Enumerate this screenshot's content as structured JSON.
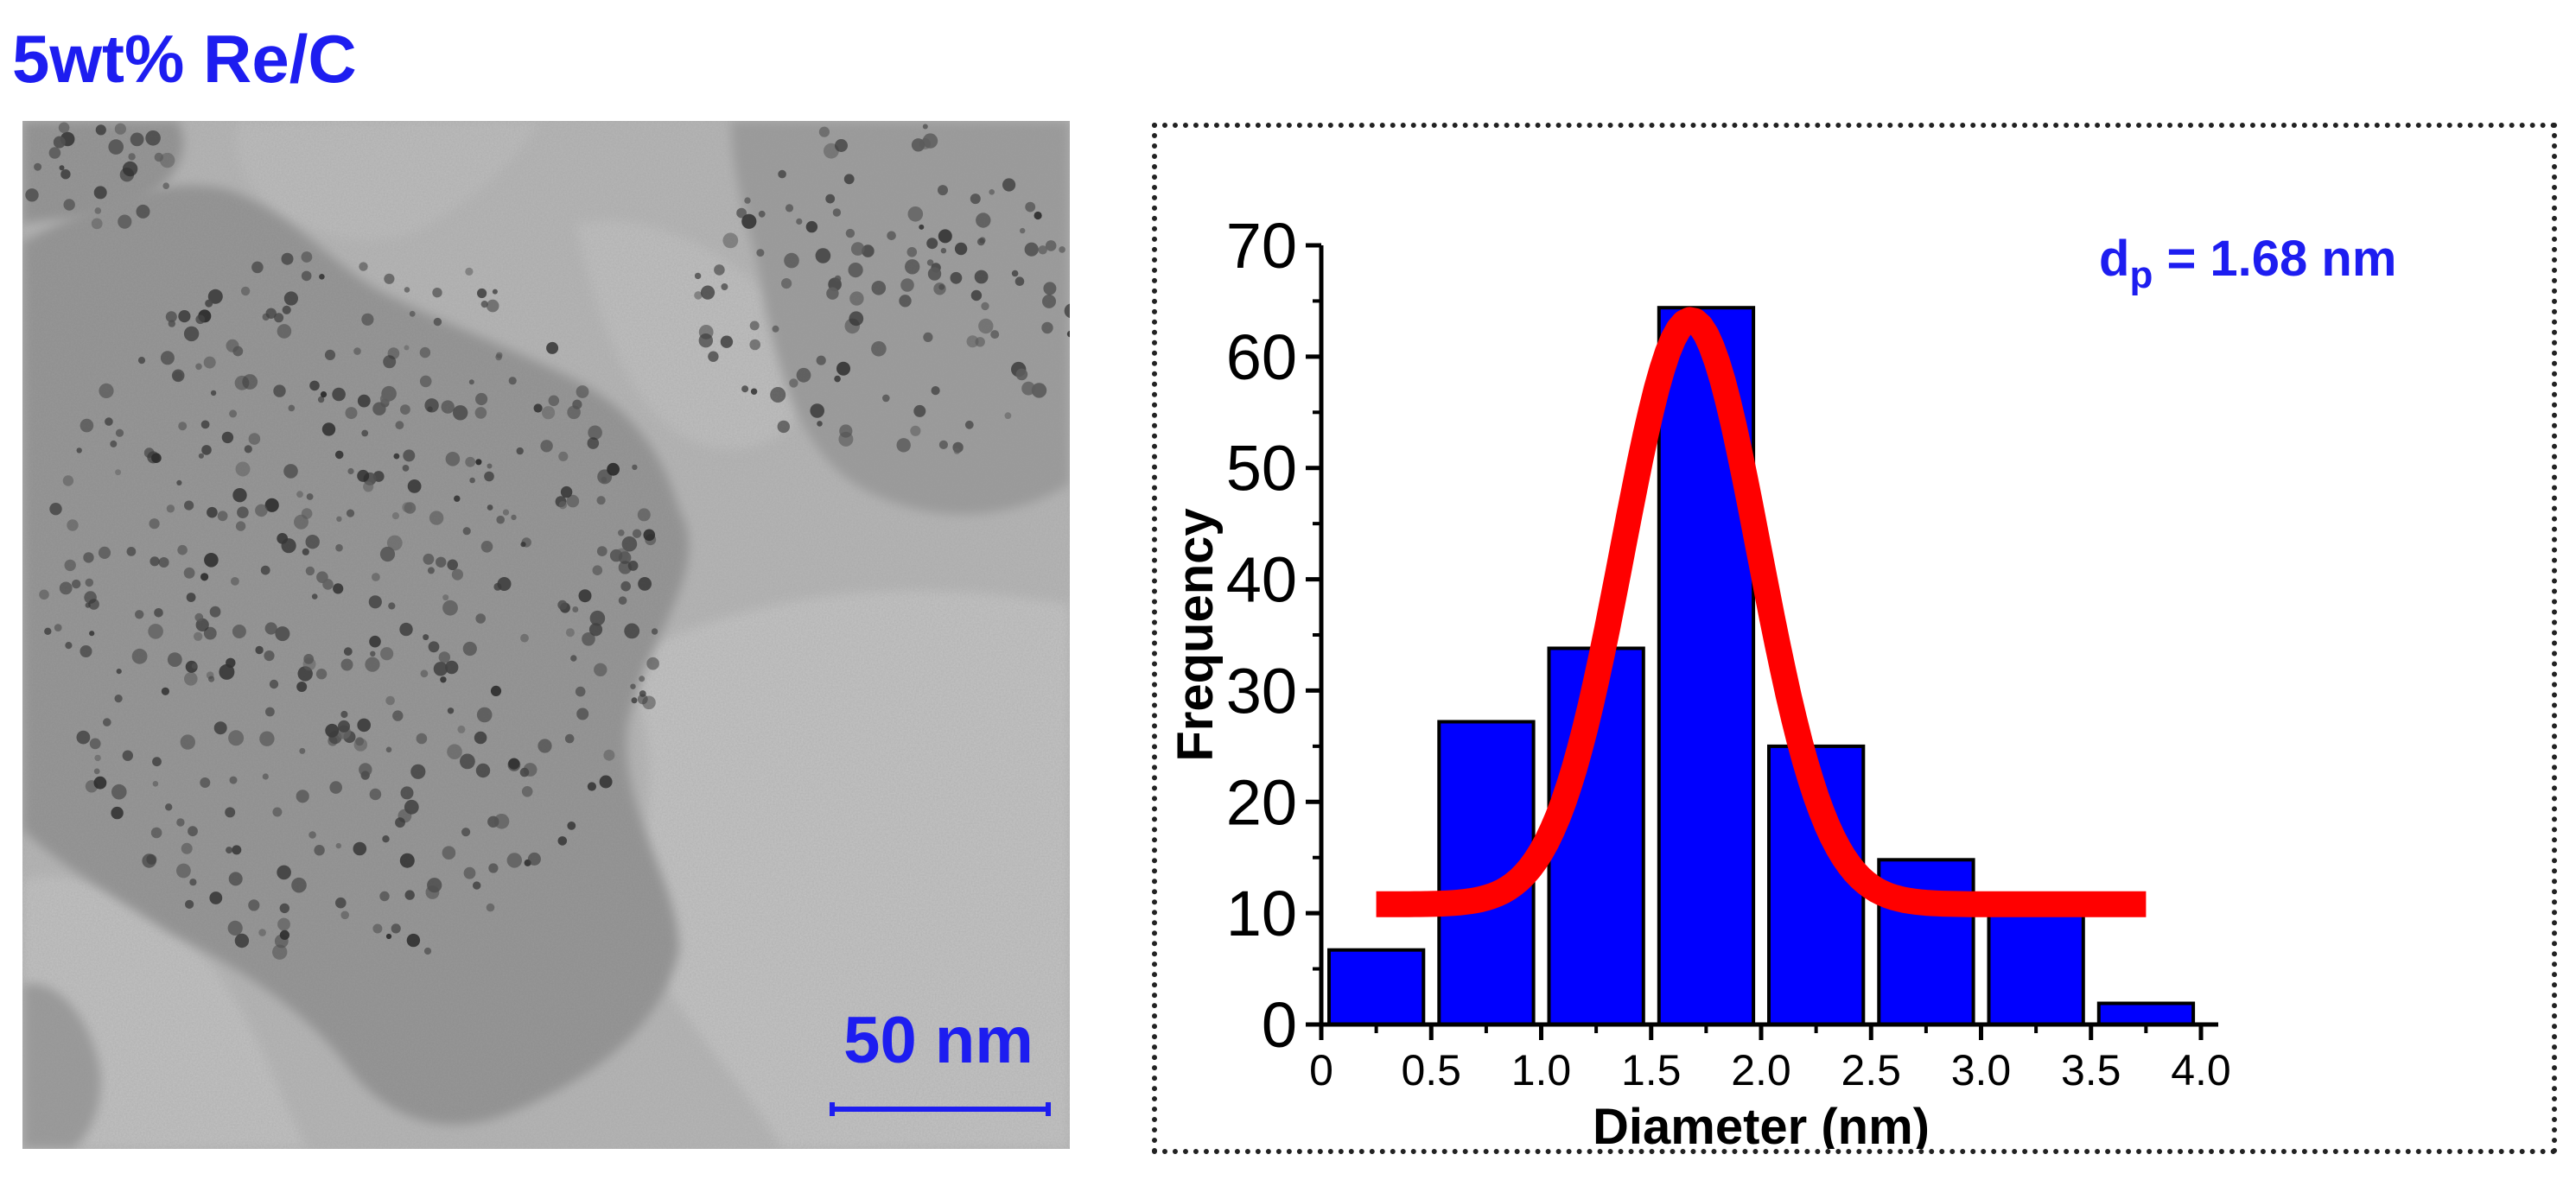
{
  "figure": {
    "title": "5wt% Re/C",
    "scale_bar_label": "50 nm",
    "accent_color": "#1d1df0"
  },
  "chart_data": {
    "type": "bar",
    "xlabel": "Diameter (nm)",
    "ylabel": "Frequency",
    "annotation": {
      "main": "d",
      "sub": "p",
      "rest": " = 1.68 nm"
    },
    "xlim": [
      0,
      4.0
    ],
    "ylim": [
      0,
      70
    ],
    "xticks": [
      "0",
      "0.5",
      "1.0",
      "1.5",
      "2.0",
      "2.5",
      "3.0",
      "3.5",
      "4.0"
    ],
    "yticks": [
      "0",
      "10",
      "20",
      "30",
      "40",
      "50",
      "60",
      "70"
    ],
    "bins": [
      {
        "from": 0.0,
        "to": 0.5,
        "value": 6.7
      },
      {
        "from": 0.5,
        "to": 1.0,
        "value": 27.2
      },
      {
        "from": 1.0,
        "to": 1.5,
        "value": 33.8
      },
      {
        "from": 1.5,
        "to": 2.0,
        "value": 64.4
      },
      {
        "from": 2.0,
        "to": 2.5,
        "value": 25.0
      },
      {
        "from": 2.5,
        "to": 3.0,
        "value": 14.8
      },
      {
        "from": 3.0,
        "to": 3.5,
        "value": 11.0
      },
      {
        "from": 3.5,
        "to": 4.0,
        "value": 1.9
      }
    ],
    "bar_color": "#0000ff",
    "fit": {
      "type": "gaussian",
      "baseline": 10.8,
      "amplitude": 52.5,
      "center": 1.68,
      "sigma": 0.31,
      "x_range": [
        0.25,
        3.75
      ],
      "color": "#ff0000"
    },
    "grid": false
  }
}
